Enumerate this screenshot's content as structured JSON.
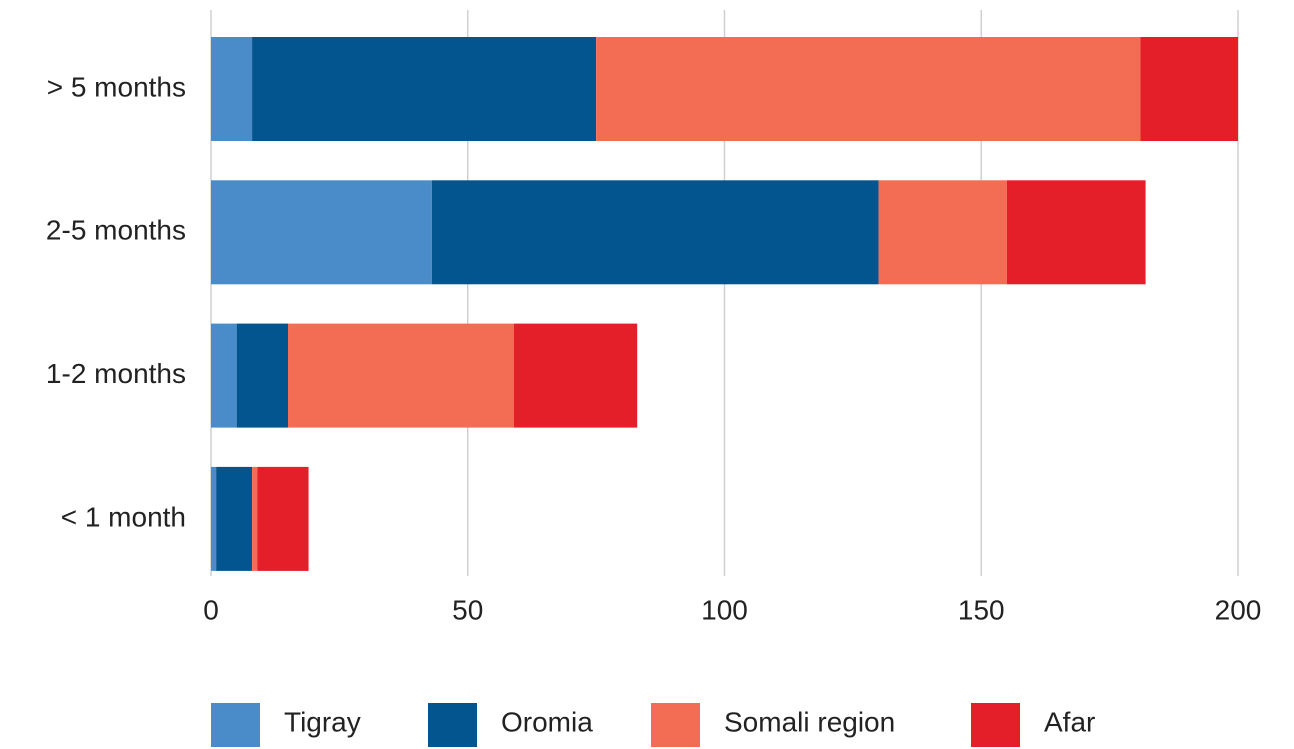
{
  "chart_data": {
    "type": "stacked_barh",
    "categories": [
      "> 5 months",
      "2-5 months",
      "1-2 months",
      "< 1 month"
    ],
    "series": [
      {
        "name": "Tigray",
        "color": "#4a8cca",
        "values": [
          8,
          43,
          5,
          1
        ]
      },
      {
        "name": "Oromia",
        "color": "#03558f",
        "values": [
          67,
          87,
          10,
          7
        ]
      },
      {
        "name": "Somali region",
        "color": "#f26d53",
        "values": [
          106,
          25,
          44,
          1
        ]
      },
      {
        "name": "Afar",
        "color": "#e51f2a",
        "values": [
          19,
          27,
          24,
          10
        ]
      }
    ],
    "xlim": [
      0,
      200
    ],
    "xticks": [
      0,
      50,
      100,
      150,
      200
    ],
    "grid": true,
    "legend": "bottom"
  }
}
